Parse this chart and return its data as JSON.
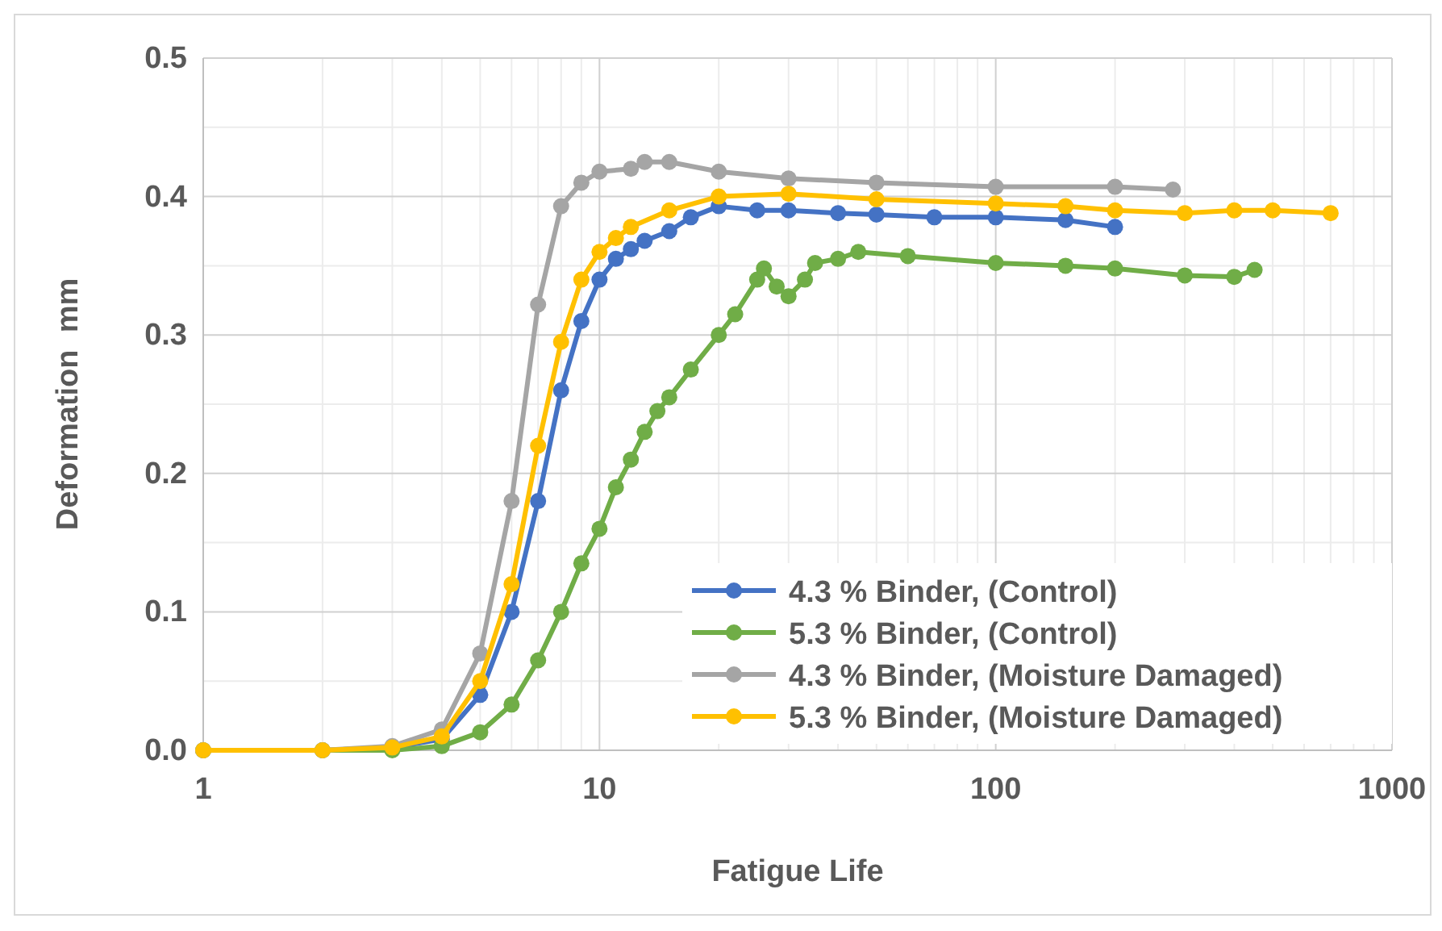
{
  "chart_data": {
    "type": "line",
    "xlabel": "Fatigue Life",
    "ylabel": "Deformation  mm",
    "log": "x",
    "grid": true,
    "legend": "bottom right",
    "marker": "circle",
    "line_style": "solid",
    "xlim": [
      1,
      1000
    ],
    "xticks": [
      1,
      10,
      100,
      1000
    ],
    "ylim": [
      0,
      0.5
    ],
    "yticks": [
      {
        "value": 0,
        "label": "0.0"
      },
      {
        "value": 0.1,
        "label": "0.1"
      },
      {
        "value": 0.2,
        "label": "0.2"
      },
      {
        "value": 0.3,
        "label": "0.3"
      },
      {
        "value": 0.4,
        "label": "0.4"
      },
      {
        "value": 0.5,
        "label": "0.5"
      }
    ],
    "series": [
      {
        "name": "4.3 % Binder, (Control)",
        "color": "#4472c4",
        "x": [
          1,
          2,
          3,
          4,
          5,
          6,
          7,
          8,
          9,
          10,
          11,
          12,
          13,
          15,
          17,
          20,
          25,
          30,
          40,
          50,
          70,
          100,
          150,
          200
        ],
        "values": [
          0,
          0,
          0.002,
          0.008,
          0.04,
          0.1,
          0.18,
          0.26,
          0.31,
          0.34,
          0.355,
          0.362,
          0.368,
          0.375,
          0.385,
          0.393,
          0.39,
          0.39,
          0.388,
          0.387,
          0.385,
          0.385,
          0.383,
          0.378
        ]
      },
      {
        "name": "5.3 % Binder, (Control)",
        "color": "#70ad47",
        "x": [
          1,
          2,
          3,
          4,
          5,
          6,
          7,
          8,
          9,
          10,
          11,
          12,
          13,
          14,
          15,
          17,
          20,
          22,
          25,
          26,
          28,
          30,
          33,
          35,
          40,
          45,
          60,
          100,
          150,
          200,
          300,
          400,
          450
        ],
        "values": [
          0,
          0,
          0,
          0.003,
          0.013,
          0.033,
          0.065,
          0.1,
          0.135,
          0.16,
          0.19,
          0.21,
          0.23,
          0.245,
          0.255,
          0.275,
          0.3,
          0.315,
          0.34,
          0.348,
          0.335,
          0.328,
          0.34,
          0.352,
          0.355,
          0.36,
          0.357,
          0.352,
          0.35,
          0.348,
          0.343,
          0.342,
          0.347
        ]
      },
      {
        "name": "4.3 % Binder, (Moisture Damaged)",
        "color": "#a5a5a5",
        "x": [
          1,
          2,
          3,
          4,
          5,
          6,
          7,
          8,
          9,
          10,
          12,
          13,
          15,
          20,
          30,
          50,
          100,
          200,
          280
        ],
        "values": [
          0,
          0,
          0.003,
          0.015,
          0.07,
          0.18,
          0.322,
          0.393,
          0.41,
          0.418,
          0.42,
          0.425,
          0.425,
          0.418,
          0.413,
          0.41,
          0.407,
          0.407,
          0.405
        ]
      },
      {
        "name": "5.3 % Binder, (Moisture Damaged)",
        "color": "#ffc000",
        "x": [
          1,
          2,
          3,
          4,
          5,
          6,
          7,
          8,
          9,
          10,
          11,
          12,
          15,
          20,
          30,
          50,
          100,
          150,
          200,
          300,
          400,
          500,
          700
        ],
        "values": [
          0,
          0,
          0.002,
          0.01,
          0.05,
          0.12,
          0.22,
          0.295,
          0.34,
          0.36,
          0.37,
          0.378,
          0.39,
          0.4,
          0.402,
          0.398,
          0.395,
          0.393,
          0.39,
          0.388,
          0.39,
          0.39,
          0.388
        ]
      }
    ]
  }
}
